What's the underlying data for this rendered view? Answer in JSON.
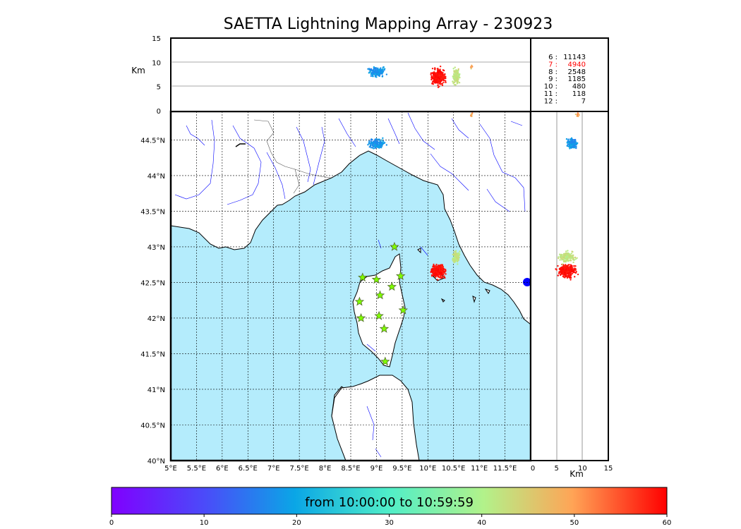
{
  "title": "SAETTA Lightning Mapping Array - 230923",
  "colorbar": {
    "label": "from 10:00:00 to 10:59:59",
    "ticks": [
      "0",
      "10",
      "20",
      "30",
      "40",
      "50",
      "60"
    ],
    "range": [
      0,
      60
    ]
  },
  "axes": {
    "lon_ticks": [
      "5°E",
      "5.5°E",
      "6°E",
      "6.5°E",
      "7°E",
      "7.5°E",
      "8°E",
      "8.5°E",
      "9°E",
      "9.5°E",
      "10°E",
      "10.5°E",
      "11°E",
      "11.5°E"
    ],
    "lat_ticks": [
      "44.5°N",
      "44°N",
      "43.5°N",
      "43°N",
      "42.5°N",
      "42°N",
      "41.5°N",
      "41°N",
      "40.5°N",
      "40°N"
    ],
    "alt_unit": "Km",
    "alt_ticks": [
      "0",
      "5",
      "10",
      "15"
    ],
    "km_x_ticks": [
      "0",
      "5",
      "10",
      "15"
    ],
    "km_label": "Km",
    "lon_range": [
      5,
      12
    ],
    "lat_range": [
      40,
      44.9
    ],
    "alt_range": [
      0,
      15
    ]
  },
  "stats": [
    {
      "label": "6  :",
      "value": "11143",
      "color": "#000000"
    },
    {
      "label": "7  :",
      "value": "4940",
      "color": "#ff0000"
    },
    {
      "label": "8  :",
      "value": "2548",
      "color": "#000000"
    },
    {
      "label": "9  :",
      "value": "1185",
      "color": "#000000"
    },
    {
      "label": "10  :",
      "value": "480",
      "color": "#000000"
    },
    {
      "label": "11  :",
      "value": "118",
      "color": "#000000"
    },
    {
      "label": "12  :",
      "value": "7",
      "color": "#000000"
    }
  ],
  "stations": [
    {
      "lon": 9.35,
      "lat": 43.0
    },
    {
      "lon": 8.73,
      "lat": 42.57
    },
    {
      "lon": 9.0,
      "lat": 42.54
    },
    {
      "lon": 9.47,
      "lat": 42.59
    },
    {
      "lon": 9.3,
      "lat": 42.44
    },
    {
      "lon": 9.07,
      "lat": 42.32
    },
    {
      "lon": 8.67,
      "lat": 42.23
    },
    {
      "lon": 9.52,
      "lat": 42.11
    },
    {
      "lon": 8.7,
      "lat": 42.0
    },
    {
      "lon": 9.05,
      "lat": 42.03
    },
    {
      "lon": 9.15,
      "lat": 41.85
    },
    {
      "lon": 9.17,
      "lat": 41.39
    }
  ],
  "lightning_clusters": [
    {
      "lon": 9.0,
      "lat": 44.45,
      "alt": 8,
      "time": 18
    },
    {
      "lon": 10.2,
      "lat": 42.66,
      "alt": 7,
      "time": 59
    },
    {
      "lon": 10.55,
      "lat": 42.86,
      "alt": 7,
      "time": 42
    },
    {
      "lon": 10.85,
      "lat": 44.85,
      "alt": 9,
      "time": 50
    }
  ],
  "colors": {
    "sea": "#b4ecfc",
    "river": "#0000ff",
    "station_fill": "#7fff00",
    "station_edge": "#556b2f"
  }
}
